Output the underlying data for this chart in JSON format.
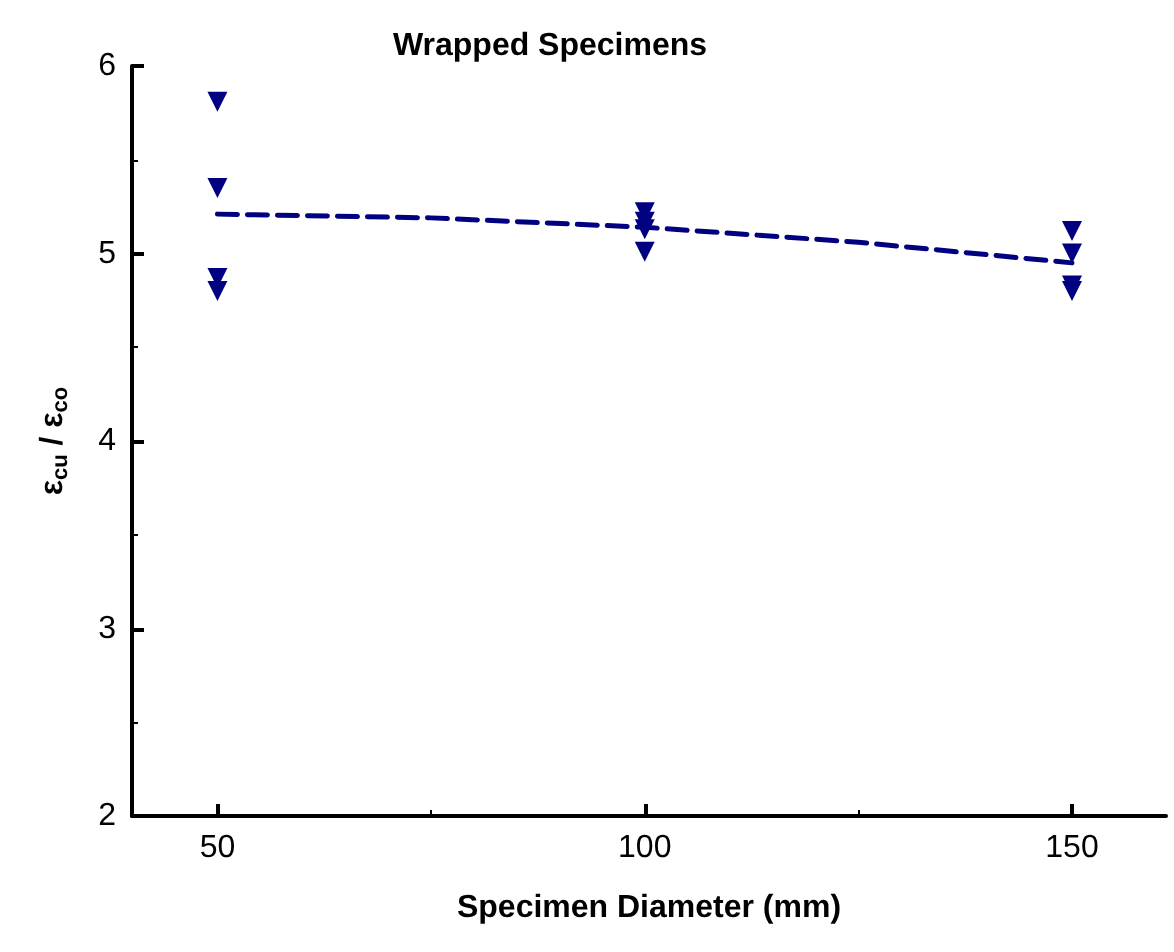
{
  "chart_data": {
    "type": "scatter",
    "title": "Wrapped Specimens",
    "xlabel": "Specimen Diameter (mm)",
    "ylabel": "ε$_{cu}$ / ε$_{co}$",
    "xlim": [
      40,
      161
    ],
    "xticks": [
      50,
      {
        "value": 75,
        "label": null
      },
      100,
      {
        "value": 125,
        "label": null
      },
      150
    ],
    "ylim": [
      2,
      6
    ],
    "yticks": [
      2,
      {
        "value": 2.5,
        "label": null
      },
      3,
      {
        "value": 3.5,
        "label": null
      },
      4,
      {
        "value": 4.5,
        "label": null
      },
      5,
      {
        "value": 5.5,
        "label": null
      },
      6
    ],
    "grid": false,
    "marker": "triangle",
    "series": [
      {
        "color": "#000080",
        "x": [
          50,
          50,
          50,
          50,
          100,
          100,
          100,
          100,
          150,
          150,
          150,
          150
        ],
        "values": [
          5.81,
          5.35,
          4.87,
          4.8,
          5.22,
          5.17,
          5.13,
          5.01,
          5.12,
          5.0,
          4.83,
          4.8
        ]
      },
      {
        "type": "line",
        "line_style": "dashed",
        "marker": "none",
        "color": "#000080",
        "x": [
          50,
          75,
          100,
          125,
          150
        ],
        "values": [
          5.21,
          5.19,
          5.14,
          5.06,
          4.95
        ]
      }
    ]
  }
}
